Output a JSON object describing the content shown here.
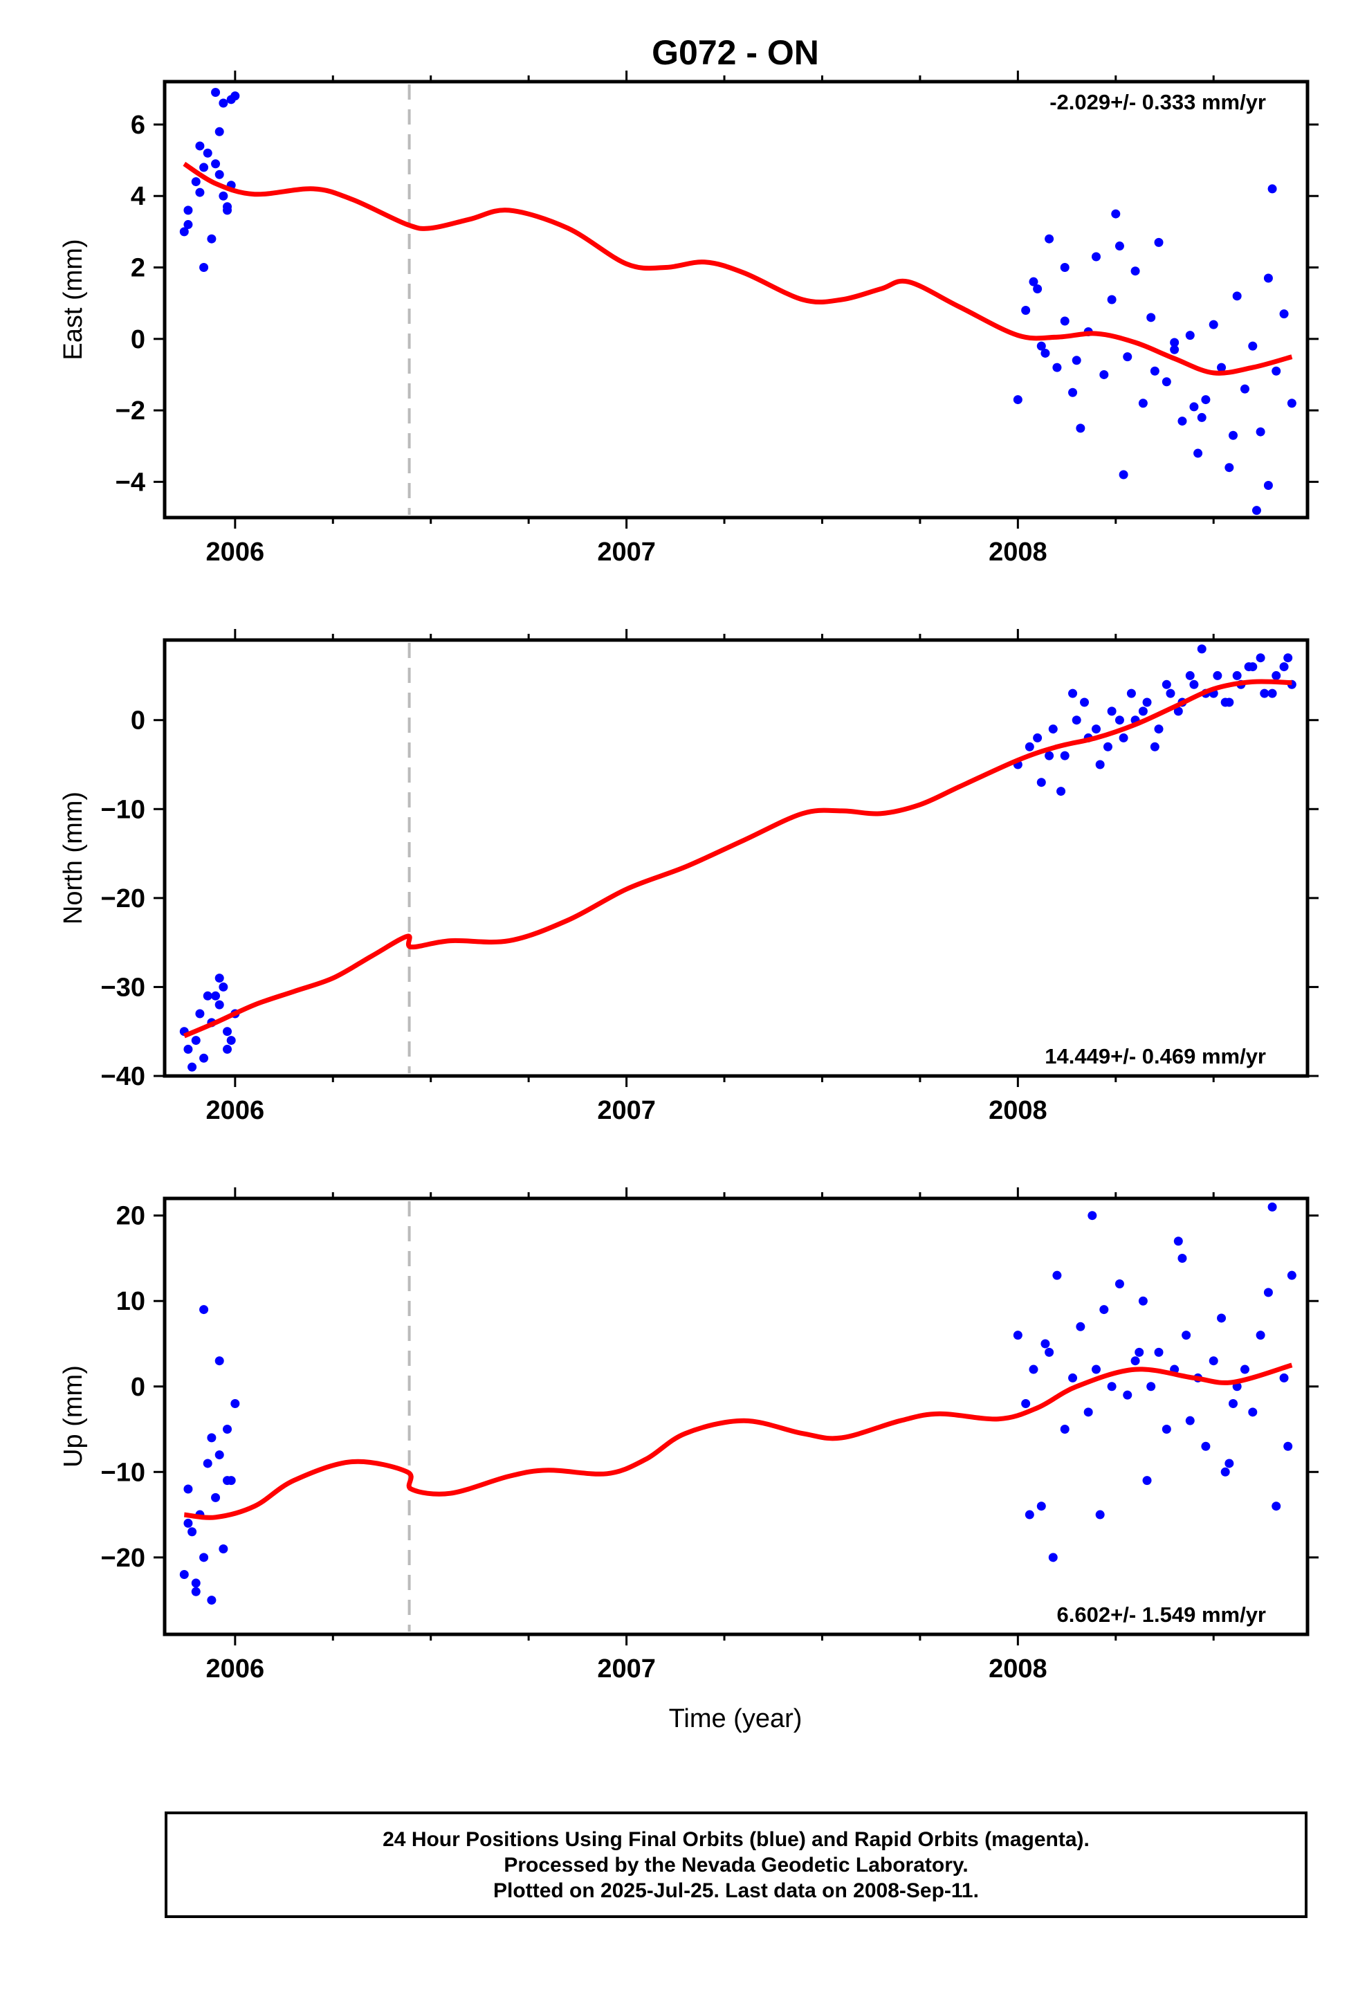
{
  "chart_data": {
    "title": "G072 - ON",
    "type": "scatter",
    "xlabel": "Time (year)",
    "xlim": [
      2005.82,
      2008.74
    ],
    "x_ticks": [
      2006,
      2007,
      2008
    ],
    "x_tick_labels": [
      "2006",
      "2007",
      "2008"
    ],
    "offset_epoch": 2006.445,
    "point_color": "#0000ff",
    "model_color": "#ff0000",
    "offset_line_color": "#bbbbbb",
    "panels": [
      {
        "name": "east",
        "ylabel": "East (mm)",
        "ylim": [
          -5.0,
          7.2
        ],
        "y_ticks": [
          -4,
          -2,
          0,
          2,
          4,
          6
        ],
        "y_tick_labels": [
          "−4",
          "−2",
          "0",
          "2",
          "4",
          "6"
        ],
        "rate_label": "-2.029+/- 0.333 mm/yr",
        "rate_position": "top-right",
        "model": {
          "x": [
            2005.87,
            2005.95,
            2006.05,
            2006.2,
            2006.3,
            2006.44,
            2006.5,
            2006.6,
            2006.7,
            2006.85,
            2007.0,
            2007.1,
            2007.2,
            2007.3,
            2007.45,
            2007.55,
            2007.65,
            2007.72,
            2007.85,
            2008.0,
            2008.1,
            2008.2,
            2008.3,
            2008.4,
            2008.5,
            2008.6,
            2008.7
          ],
          "y": [
            4.9,
            4.35,
            4.05,
            4.2,
            3.9,
            3.2,
            3.1,
            3.35,
            3.6,
            3.1,
            2.1,
            2.0,
            2.15,
            1.85,
            1.1,
            1.1,
            1.4,
            1.6,
            0.9,
            0.1,
            0.05,
            0.15,
            -0.1,
            -0.55,
            -0.95,
            -0.8,
            -0.5
          ]
        },
        "points": {
          "x": [
            2005.87,
            2005.88,
            2005.9,
            2005.92,
            2005.93,
            2005.95,
            2005.96,
            2005.97,
            2005.98,
            2005.99,
            2005.88,
            2005.91,
            2005.94,
            2005.96,
            2005.97,
            2005.99,
            2005.91,
            2005.95,
            2005.98,
            2005.92,
            2006.0,
            2008.0,
            2008.02,
            2008.04,
            2008.06,
            2008.08,
            2008.1,
            2008.12,
            2008.14,
            2008.16,
            2008.18,
            2008.2,
            2008.22,
            2008.24,
            2008.26,
            2008.28,
            2008.3,
            2008.32,
            2008.34,
            2008.36,
            2008.38,
            2008.4,
            2008.42,
            2008.44,
            2008.46,
            2008.48,
            2008.5,
            2008.52,
            2008.54,
            2008.56,
            2008.58,
            2008.6,
            2008.62,
            2008.64,
            2008.66,
            2008.68,
            2008.7,
            2008.05,
            2008.15,
            2008.25,
            2008.35,
            2008.45,
            2008.55,
            2008.65,
            2008.07,
            2008.27,
            2008.47,
            2008.64,
            2008.12,
            2008.4,
            2008.61
          ],
          "y": [
            3.0,
            3.6,
            4.4,
            2.0,
            5.2,
            6.9,
            5.8,
            4.0,
            3.7,
            6.7,
            3.2,
            4.1,
            2.8,
            4.6,
            6.6,
            4.3,
            5.4,
            4.9,
            3.6,
            4.8,
            6.8,
            -1.7,
            0.8,
            1.6,
            -0.2,
            2.8,
            -0.8,
            0.5,
            -1.5,
            -2.5,
            0.2,
            2.3,
            -1.0,
            1.1,
            2.6,
            -0.5,
            1.9,
            -1.8,
            0.6,
            2.7,
            -1.2,
            -0.3,
            -2.3,
            0.1,
            -3.2,
            -1.7,
            0.4,
            -0.8,
            -3.6,
            1.2,
            -1.4,
            -0.2,
            -2.6,
            1.7,
            -0.9,
            0.7,
            -1.8,
            1.4,
            -0.6,
            3.5,
            -0.9,
            -1.9,
            -2.7,
            4.2,
            -0.4,
            -3.8,
            -2.2,
            -4.1,
            2.0,
            -0.1,
            -4.8
          ]
        }
      },
      {
        "name": "north",
        "ylabel": "North (mm)",
        "ylim": [
          -40,
          9
        ],
        "y_ticks": [
          -40,
          -30,
          -20,
          -10,
          0
        ],
        "y_tick_labels": [
          "−40",
          "−30",
          "−20",
          "−10",
          "0"
        ],
        "rate_label": "14.449+/- 0.469 mm/yr",
        "rate_position": "bottom-right",
        "model": {
          "x": [
            2005.87,
            2005.95,
            2006.05,
            2006.15,
            2006.25,
            2006.35,
            2006.44,
            2006.45,
            2006.55,
            2006.7,
            2006.85,
            2007.0,
            2007.15,
            2007.3,
            2007.45,
            2007.55,
            2007.65,
            2007.75,
            2007.85,
            2008.0,
            2008.1,
            2008.2,
            2008.3,
            2008.4,
            2008.5,
            2008.6,
            2008.7
          ],
          "y": [
            -35.5,
            -34.0,
            -32.0,
            -30.5,
            -29.0,
            -26.5,
            -24.3,
            -25.5,
            -24.8,
            -24.8,
            -22.5,
            -19.0,
            -16.5,
            -13.5,
            -10.5,
            -10.2,
            -10.5,
            -9.5,
            -7.5,
            -4.5,
            -3.0,
            -2.0,
            -0.5,
            1.5,
            3.5,
            4.3,
            4.2
          ]
        },
        "points": {
          "x": [
            2005.87,
            2005.88,
            2005.9,
            2005.91,
            2005.92,
            2005.94,
            2005.95,
            2005.96,
            2005.97,
            2005.98,
            2005.99,
            2006.0,
            2005.89,
            2005.93,
            2005.96,
            2005.98,
            2008.0,
            2008.03,
            2008.06,
            2008.09,
            2008.12,
            2008.15,
            2008.18,
            2008.21,
            2008.24,
            2008.27,
            2008.3,
            2008.33,
            2008.36,
            2008.39,
            2008.42,
            2008.45,
            2008.48,
            2008.51,
            2008.54,
            2008.57,
            2008.6,
            2008.63,
            2008.66,
            2008.69,
            2008.7,
            2008.05,
            2008.11,
            2008.17,
            2008.23,
            2008.29,
            2008.35,
            2008.41,
            2008.47,
            2008.53,
            2008.59,
            2008.65,
            2008.08,
            2008.14,
            2008.2,
            2008.26,
            2008.32,
            2008.38,
            2008.44,
            2008.5,
            2008.56,
            2008.62,
            2008.68
          ],
          "y": [
            -35,
            -37,
            -36,
            -33,
            -38,
            -34,
            -31,
            -32,
            -30,
            -35,
            -36,
            -33,
            -39,
            -31,
            -29,
            -37,
            -5,
            -3,
            -7,
            -1,
            -4,
            0,
            -2,
            -5,
            1,
            -2,
            0,
            2,
            -1,
            3,
            2,
            4,
            3,
            5,
            2,
            4,
            6,
            3,
            5,
            7,
            4,
            -2,
            -8,
            2,
            -3,
            3,
            -3,
            1,
            8,
            2,
            6,
            3,
            -4,
            3,
            -1,
            0,
            1,
            4,
            5,
            3,
            5,
            7,
            6
          ]
        }
      },
      {
        "name": "up",
        "ylabel": "Up (mm)",
        "ylim": [
          -29,
          22
        ],
        "y_ticks": [
          -20,
          -10,
          0,
          10,
          20
        ],
        "y_tick_labels": [
          "−20",
          "−10",
          "0",
          "10",
          "20"
        ],
        "rate_label": "6.602+/- 1.549 mm/yr",
        "rate_position": "bottom-right",
        "model": {
          "x": [
            2005.87,
            2005.95,
            2006.05,
            2006.15,
            2006.3,
            2006.44,
            2006.45,
            2006.55,
            2006.7,
            2006.8,
            2006.95,
            2007.05,
            2007.15,
            2007.3,
            2007.45,
            2007.55,
            2007.7,
            2007.8,
            2007.95,
            2008.05,
            2008.15,
            2008.3,
            2008.45,
            2008.55,
            2008.7
          ],
          "y": [
            -15.0,
            -15.3,
            -14.0,
            -11.0,
            -8.8,
            -10.0,
            -12.0,
            -12.5,
            -10.5,
            -9.8,
            -10.2,
            -8.5,
            -5.5,
            -4.0,
            -5.5,
            -6.0,
            -4.0,
            -3.2,
            -3.8,
            -2.5,
            0.0,
            2.0,
            1.0,
            0.5,
            2.5
          ]
        },
        "points": {
          "x": [
            2005.87,
            2005.88,
            2005.89,
            2005.9,
            2005.91,
            2005.92,
            2005.93,
            2005.94,
            2005.95,
            2005.96,
            2005.97,
            2005.98,
            2005.99,
            2006.0,
            2005.88,
            2005.9,
            2005.92,
            2005.94,
            2005.96,
            2005.98,
            2008.0,
            2008.02,
            2008.04,
            2008.06,
            2008.08,
            2008.1,
            2008.12,
            2008.14,
            2008.16,
            2008.18,
            2008.2,
            2008.22,
            2008.24,
            2008.26,
            2008.28,
            2008.3,
            2008.32,
            2008.34,
            2008.36,
            2008.38,
            2008.4,
            2008.42,
            2008.44,
            2008.46,
            2008.48,
            2008.5,
            2008.52,
            2008.54,
            2008.56,
            2008.58,
            2008.6,
            2008.62,
            2008.64,
            2008.66,
            2008.68,
            2008.7,
            2008.03,
            2008.09,
            2008.21,
            2008.33,
            2008.41,
            2008.53,
            2008.65,
            2008.07,
            2008.19,
            2008.31,
            2008.43,
            2008.55,
            2008.69
          ],
          "y": [
            -22,
            -12,
            -17,
            -24,
            -15,
            -20,
            -9,
            -25,
            -13,
            -8,
            -19,
            -5,
            -11,
            -2,
            -16,
            -23,
            9,
            -6,
            3,
            -11,
            6,
            -2,
            2,
            -14,
            4,
            13,
            -5,
            1,
            7,
            -3,
            2,
            9,
            0,
            12,
            -1,
            3,
            10,
            0,
            4,
            -5,
            2,
            15,
            -4,
            1,
            -7,
            3,
            8,
            -9,
            0,
            2,
            -3,
            6,
            11,
            -14,
            1,
            13,
            -15,
            -20,
            -15,
            -11,
            17,
            -10,
            21,
            5,
            20,
            4,
            6,
            -2,
            -7
          ]
        }
      }
    ]
  },
  "caption": {
    "line1": "24 Hour Positions Using Final Orbits (blue) and Rapid Orbits (magenta).",
    "line2": "Processed by the Nevada Geodetic Laboratory.",
    "line3": "Plotted on 2025-Jul-25. Last data on 2008-Sep-11."
  }
}
